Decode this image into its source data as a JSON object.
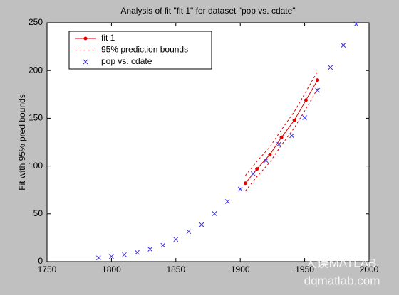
{
  "chart_data": {
    "type": "line",
    "title": "Analysis of fit \"fit 1\" for dataset \"pop vs. cdate\"",
    "ylabel": "Fit with 95% pred bounds",
    "xlim": [
      1750,
      2000
    ],
    "xticks": [
      1750,
      1800,
      1850,
      1900,
      1950,
      2000
    ],
    "ylim": [
      0,
      250
    ],
    "yticks": [
      0,
      50,
      100,
      150,
      200,
      250
    ],
    "legend": "upper-left",
    "series": [
      {
        "name": "fit 1",
        "style": "line-dot",
        "color": "#e00000",
        "x": [
          1904,
          1913,
          1923,
          1932,
          1942,
          1951,
          1960
        ],
        "values": [
          82,
          97,
          112,
          130,
          148,
          169,
          190
        ]
      },
      {
        "name": "95% prediction bounds",
        "style": "bounds",
        "color": "#e00000",
        "x": [
          1904,
          1913,
          1923,
          1932,
          1942,
          1951,
          1960
        ],
        "lower": [
          74,
          89,
          104,
          122,
          140,
          160,
          181
        ],
        "upper": [
          90,
          105,
          120,
          138,
          157,
          178,
          199
        ]
      },
      {
        "name": "pop vs. cdate",
        "style": "scatter",
        "color": "#3a2ee0",
        "x": [
          1790,
          1800,
          1810,
          1820,
          1830,
          1840,
          1850,
          1860,
          1870,
          1880,
          1890,
          1900,
          1910,
          1920,
          1930,
          1940,
          1950,
          1960,
          1970,
          1980,
          1990
        ],
        "values": [
          3.9,
          5.3,
          7.2,
          9.6,
          12.9,
          17.1,
          23.2,
          31.4,
          38.6,
          50.2,
          62.9,
          76.0,
          92.0,
          105.7,
          122.8,
          131.7,
          150.7,
          179.3,
          203.2,
          226.5,
          248.7
        ]
      }
    ]
  },
  "watermark": {
    "brand": "大谟MATLAB",
    "site": "dqmatlab.com"
  }
}
